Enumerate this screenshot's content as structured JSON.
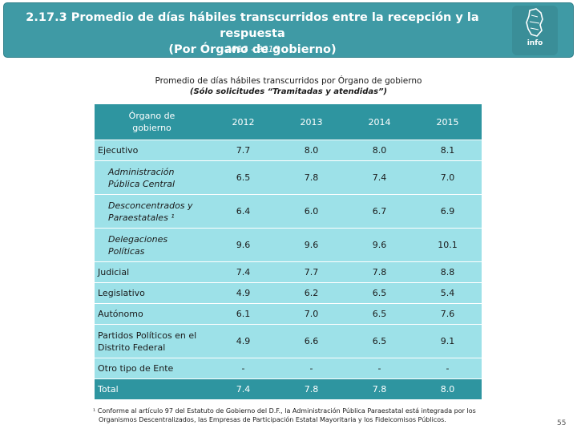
{
  "header": {
    "title_line1": "2.17.3 Promedio de días hábiles transcurridos entre la recepción y la respuesta",
    "title_line2": "(Por Órgano de gobierno)",
    "subtitle": "2012 - 2015",
    "logo_text": "info"
  },
  "table_title": {
    "line1": "Promedio de días hábiles transcurridos por Órgano de gobierno",
    "line2": "(Sólo solicitudes “Tramitadas y atendidas”)"
  },
  "table": {
    "org_header_line1": "Órgano de",
    "org_header_line2": "gobierno",
    "years": [
      "2012",
      "2013",
      "2014",
      "2015"
    ],
    "rows": [
      {
        "line1": "Ejecutivo",
        "line2": "",
        "values": [
          "7.7",
          "8.0",
          "8.0",
          "8.1"
        ]
      },
      {
        "line1": "Administración",
        "line2": "Pública Central",
        "values": [
          "6.5",
          "7.8",
          "7.4",
          "7.0"
        ]
      },
      {
        "line1": "Desconcentrados y",
        "line2": "Paraestatales ¹",
        "values": [
          "6.4",
          "6.0",
          "6.7",
          "6.9"
        ]
      },
      {
        "line1": "Delegaciones",
        "line2": "Políticas",
        "values": [
          "9.6",
          "9.6",
          "9.6",
          "10.1"
        ]
      },
      {
        "line1": "Judicial",
        "line2": "",
        "values": [
          "7.4",
          "7.7",
          "7.8",
          "8.8"
        ]
      },
      {
        "line1": "Legislativo",
        "line2": "",
        "values": [
          "4.9",
          "6.2",
          "6.5",
          "5.4"
        ]
      },
      {
        "line1": "Autónomo",
        "line2": "",
        "values": [
          "6.1",
          "7.0",
          "6.5",
          "7.6"
        ]
      },
      {
        "line1": "Partidos Políticos en el",
        "line2": "Distrito Federal",
        "values": [
          "4.9",
          "6.6",
          "6.5",
          "9.1"
        ]
      },
      {
        "line1": "Otro tipo de Ente",
        "line2": "",
        "values": [
          "-",
          "-",
          "-",
          "-"
        ]
      }
    ],
    "total": {
      "label": "Total",
      "values": [
        "7.4",
        "7.8",
        "7.8",
        "8.0"
      ]
    }
  },
  "footnote": {
    "line1": "¹ Conforme al artículo 97 del Estatuto de Gobierno del D.F., la Administración Pública Paraestatal está integrada por los",
    "line2": "Organismos Descentralizados, las Empresas de Participación Estatal Mayoritaria y los Fideicomisos Públicos."
  },
  "page_number": "55",
  "colors": {
    "header_bg": "#3f9aa5",
    "table_header_bg": "#2e95a0",
    "table_cell_bg": "#9de1e8"
  }
}
